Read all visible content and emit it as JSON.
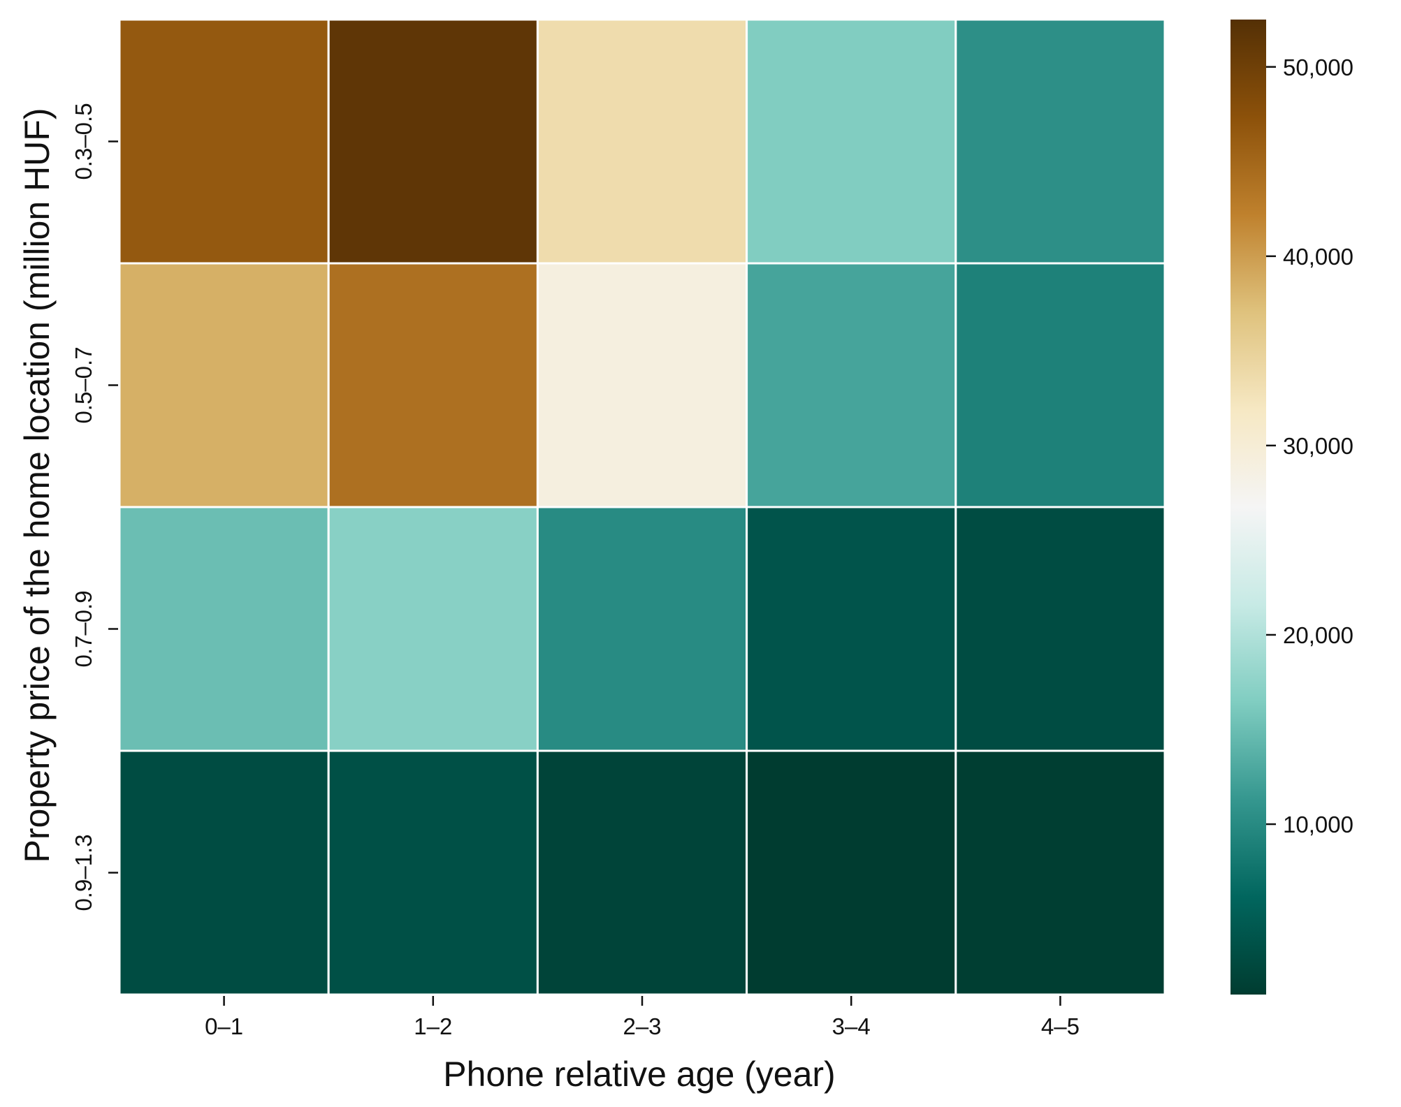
{
  "chart_data": {
    "type": "heatmap",
    "xlabel": "Phone relative age (year)",
    "ylabel": "Property price of the home location (million HUF)",
    "x_categories": [
      "0–1",
      "1–2",
      "2–3",
      "3–4",
      "4–5"
    ],
    "y_categories": [
      "0.3–0.5",
      "0.5–0.7",
      "0.7–0.9",
      "0.9–1.3"
    ],
    "values": [
      [
        46500,
        51500,
        33500,
        16500,
        10500
      ],
      [
        38500,
        44000,
        29000,
        12500,
        9000
      ],
      [
        15000,
        17000,
        10000,
        4000,
        3000
      ],
      [
        3000,
        3500,
        2000,
        1000,
        1200
      ]
    ],
    "colorbar": {
      "min": 1000,
      "max": 52500,
      "ticks": [
        10000,
        20000,
        30000,
        40000,
        50000
      ],
      "tick_labels": [
        "10,000",
        "20,000",
        "30,000",
        "40,000",
        "50,000"
      ],
      "colormap": "BrBG_r"
    },
    "grid": false
  }
}
